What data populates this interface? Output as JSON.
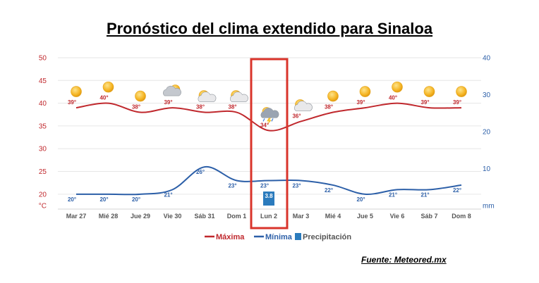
{
  "header": {
    "title": "Pronóstico del clima extendido para Sinaloa"
  },
  "footer": {
    "source": "Fuente: Meteored.mx"
  },
  "chart_data": {
    "type": "line",
    "categories": [
      "Mar 27",
      "Mié 28",
      "Jue 29",
      "Vie 30",
      "Sáb 31",
      "Dom 1",
      "Lun 2",
      "Mar 3",
      "Mié 4",
      "Jue 5",
      "Vie 6",
      "Sáb 7",
      "Dom 8"
    ],
    "y_left_ticks": [
      50,
      45,
      40,
      35,
      30,
      25,
      20
    ],
    "y_left_unit": "°C",
    "y_left_range": [
      17.5,
      50
    ],
    "y_right_ticks": [
      40,
      30,
      20,
      10
    ],
    "y_right_unit": "mm",
    "y_right_range": [
      0,
      40
    ],
    "series": [
      {
        "name": "Máxima",
        "color": "#c0282d",
        "values": [
          39,
          40,
          38,
          39,
          38,
          38,
          34,
          36,
          38,
          39,
          40,
          39,
          39
        ],
        "labels": [
          "39°",
          "40°",
          "38°",
          "39°",
          "38°",
          "38°",
          "34°",
          "36°",
          "38°",
          "39°",
          "40°",
          "39°",
          "39°"
        ]
      },
      {
        "name": "Mínima",
        "color": "#2c5fa8",
        "values": [
          20,
          20,
          20,
          21,
          26,
          23,
          23,
          23,
          22,
          20,
          21,
          21,
          22
        ],
        "labels": [
          "20°",
          "20°",
          "20°",
          "21°",
          "26°",
          "23°",
          "23°",
          "23°",
          "22°",
          "20°",
          "21°",
          "21°",
          "22°"
        ]
      },
      {
        "name": "Precipitación",
        "color": "#2b7bbd",
        "values": [
          null,
          null,
          null,
          null,
          null,
          null,
          3.8,
          null,
          null,
          null,
          null,
          null,
          null
        ],
        "labels": [
          "",
          "",
          "",
          "",
          "",
          "",
          "3.8",
          "",
          "",
          "",
          "",
          "",
          ""
        ]
      }
    ],
    "icons": [
      "sun-icon",
      "sun-icon",
      "sun-icon",
      "cloud-icon",
      "partly-cloudy-icon",
      "partly-cloudy-icon",
      "thunderstorm-icon",
      "partly-cloudy-icon",
      "sun-icon",
      "sun-icon",
      "sun-icon",
      "sun-icon",
      "sun-icon"
    ],
    "highlighted_category": "Lun 2",
    "highlight_color": "#d9342b",
    "legend_position": "bottom"
  }
}
